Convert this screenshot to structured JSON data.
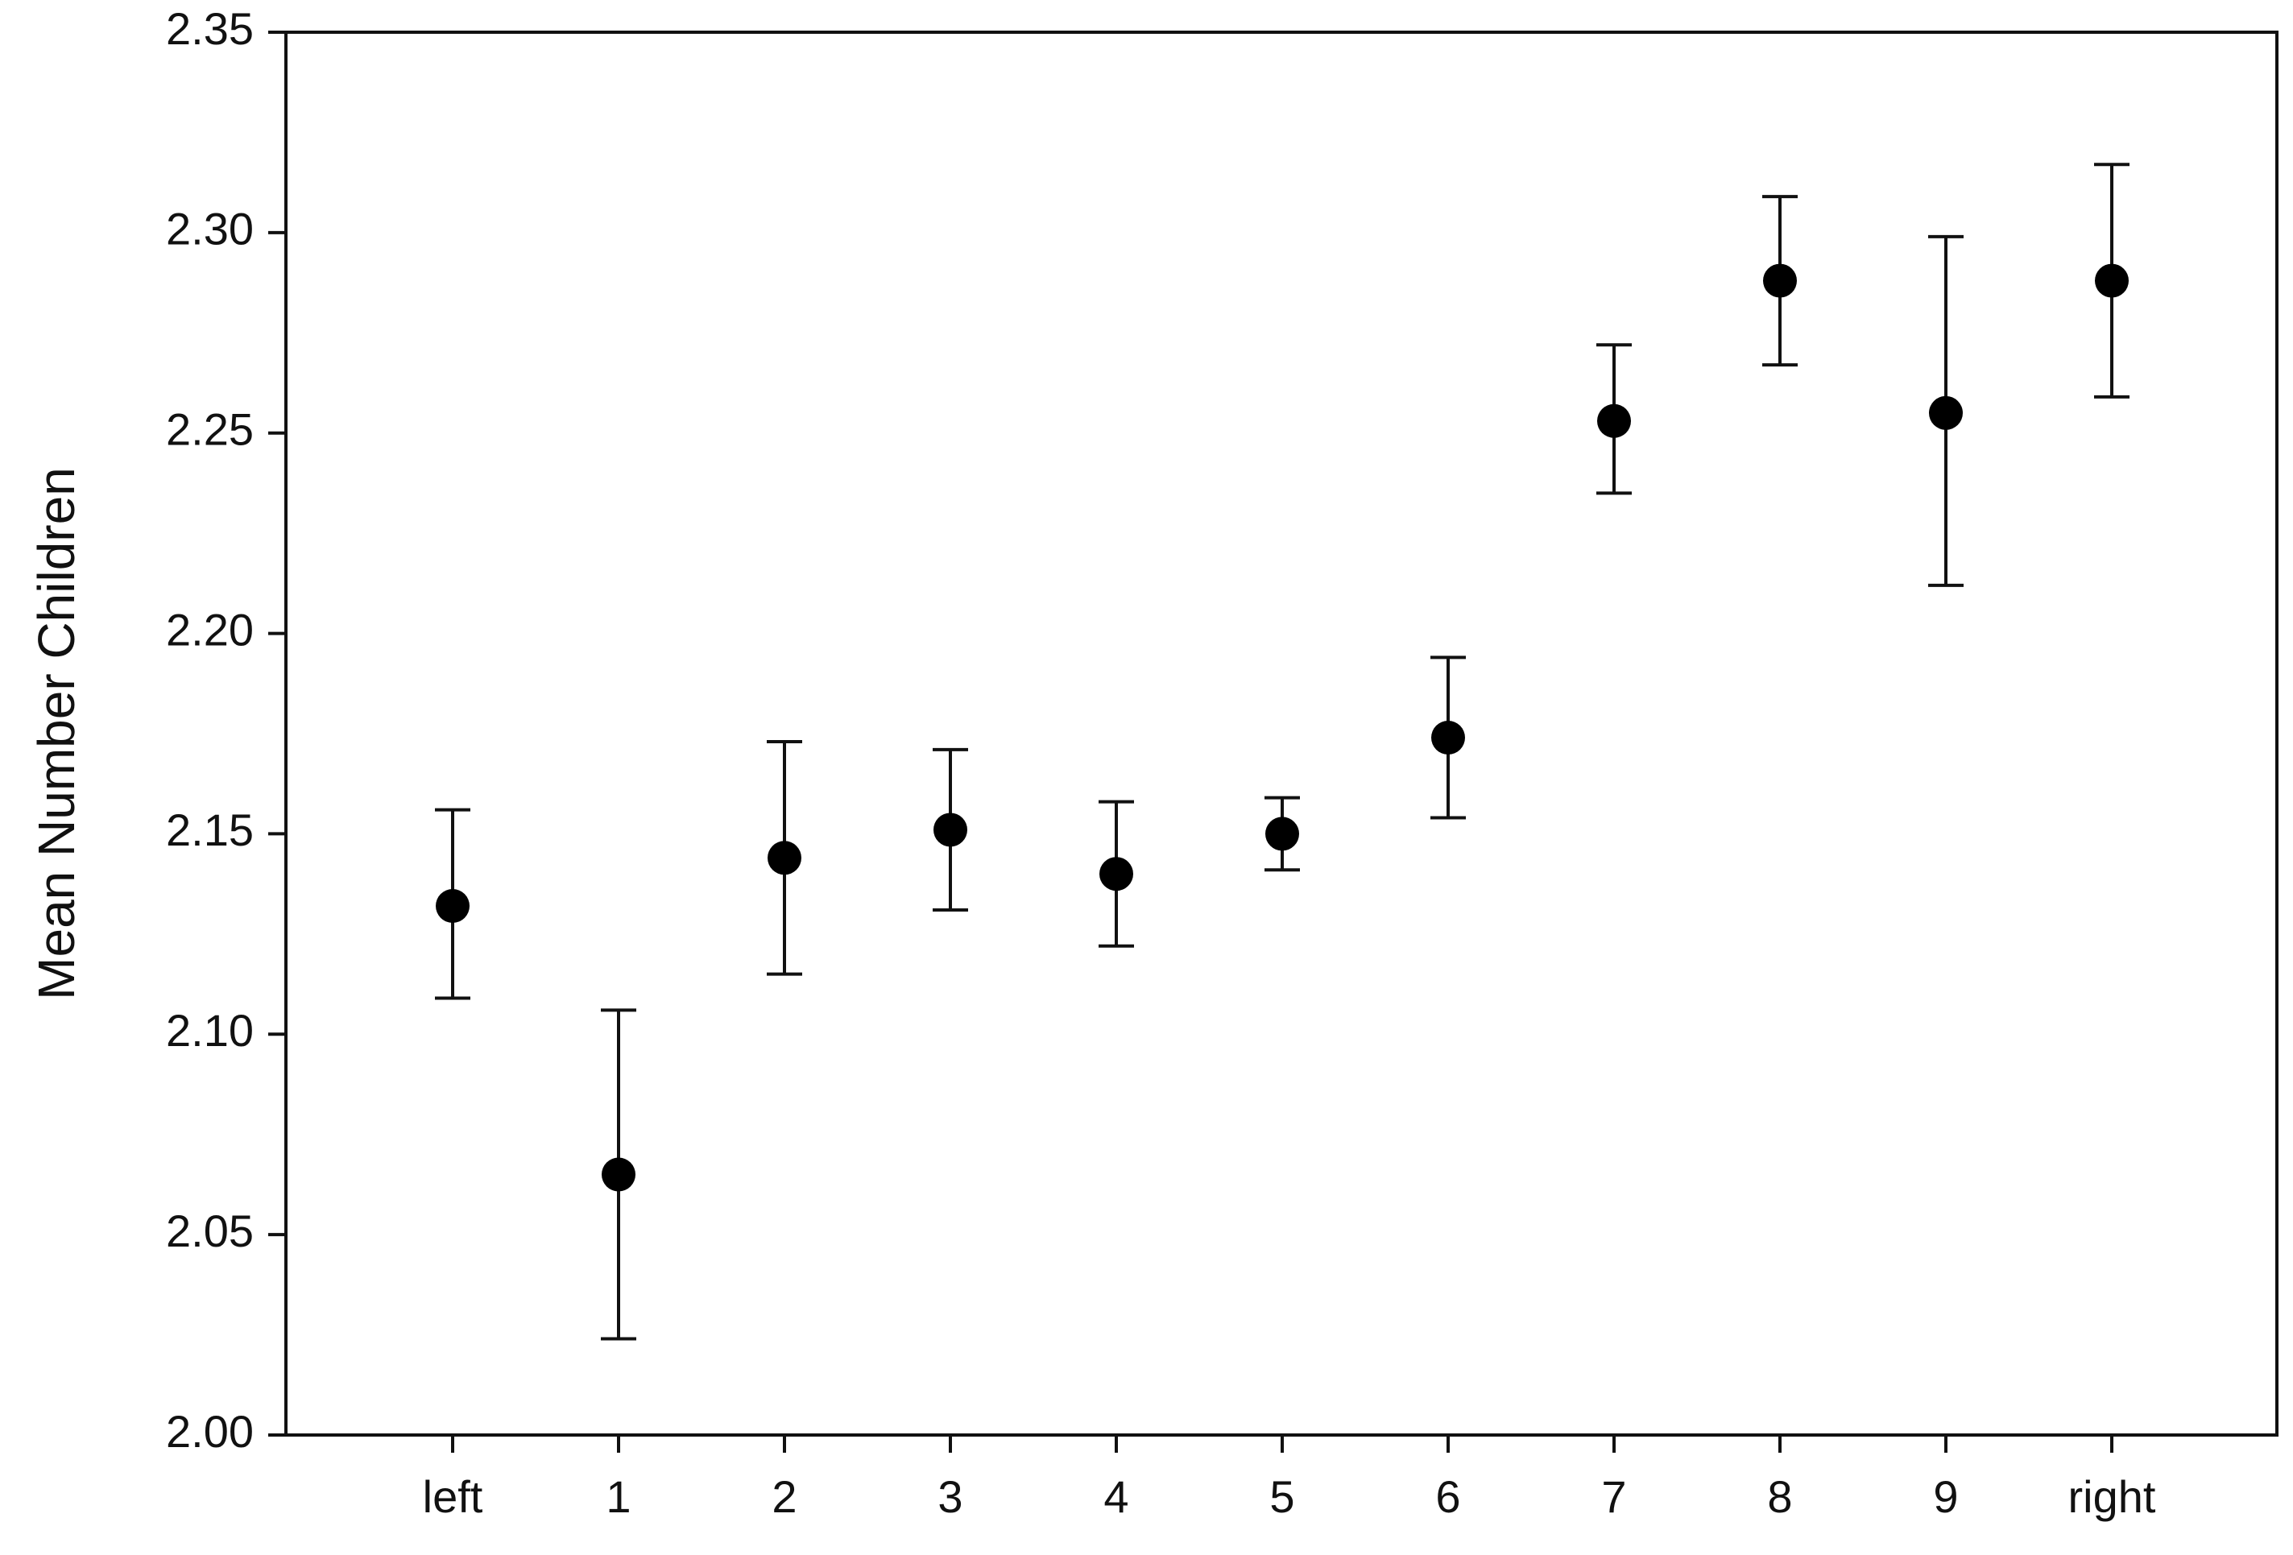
{
  "chart_data": {
    "type": "scatter",
    "title": "",
    "xlabel": "",
    "ylabel": "Mean Number Children",
    "categories": [
      "left",
      "1",
      "2",
      "3",
      "4",
      "5",
      "6",
      "7",
      "8",
      "9",
      "right"
    ],
    "series": [
      {
        "values": [
          2.132,
          2.065,
          2.144,
          2.151,
          2.14,
          2.15,
          2.174,
          2.253,
          2.288,
          2.255,
          2.288
        ],
        "error_lower": [
          2.109,
          2.024,
          2.115,
          2.131,
          2.122,
          2.141,
          2.154,
          2.235,
          2.267,
          2.212,
          2.259
        ],
        "error_upper": [
          2.156,
          2.106,
          2.173,
          2.171,
          2.158,
          2.159,
          2.194,
          2.272,
          2.309,
          2.299,
          2.317
        ]
      }
    ],
    "ylim": [
      2.0,
      2.35
    ],
    "yticks": [
      "2.00",
      "2.05",
      "2.10",
      "2.15",
      "2.20",
      "2.25",
      "2.30",
      "2.35"
    ],
    "grid": false,
    "legend": "none",
    "colors": {
      "marker": "#000000",
      "axis": "#111111"
    }
  }
}
